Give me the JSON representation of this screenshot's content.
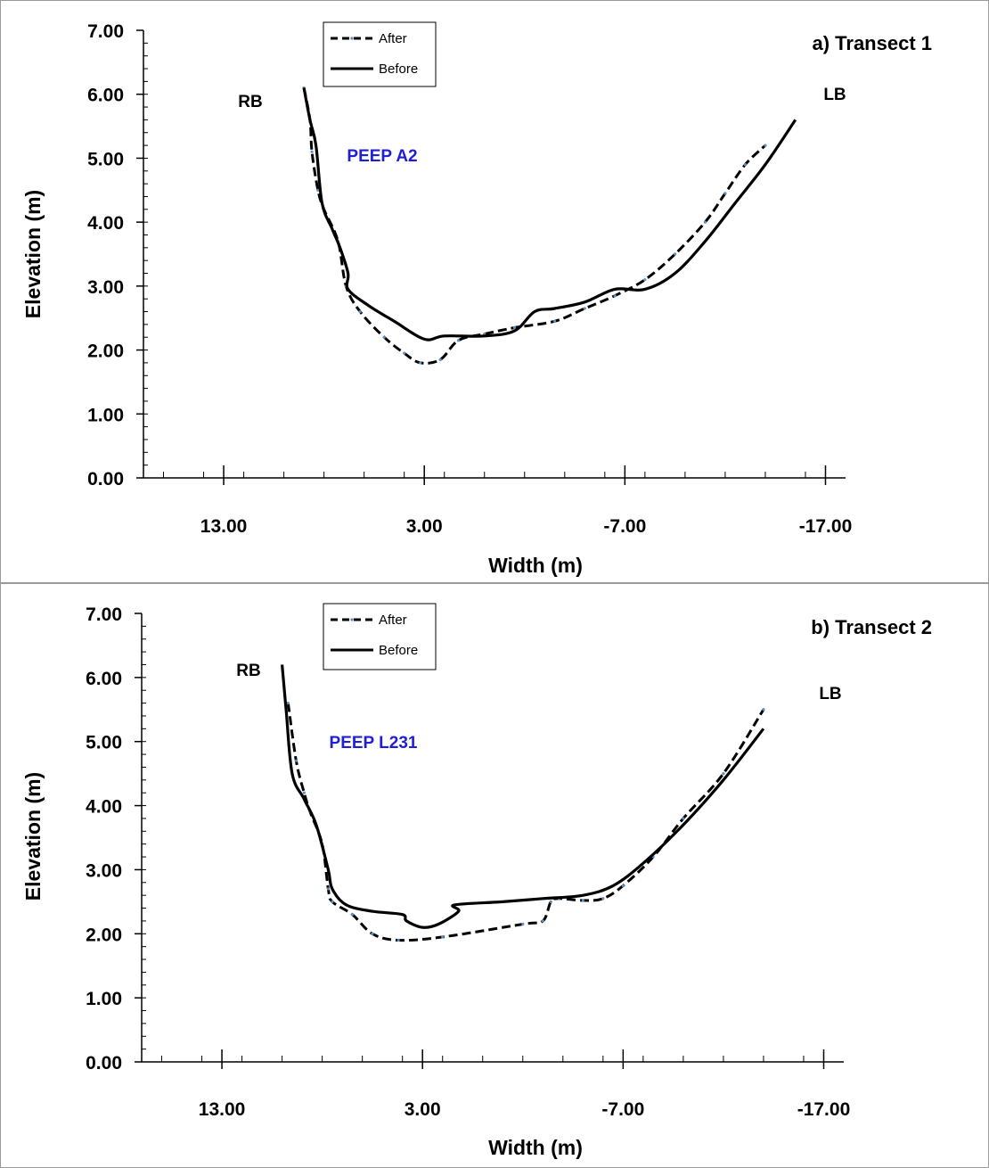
{
  "chart_data": [
    {
      "type": "line",
      "title": "a) Transect 1",
      "xlabel": "Width (m)",
      "ylabel": "Elevation (m)",
      "xlim": [
        17,
        -18
      ],
      "ylim": [
        0,
        7
      ],
      "x_axis_reversed": true,
      "x_ticks": [
        "13.00",
        "3.00",
        "-7.00",
        "-17.00"
      ],
      "y_ticks": [
        "0.00",
        "1.00",
        "2.00",
        "3.00",
        "4.00",
        "5.00",
        "6.00",
        "7.00"
      ],
      "grid": false,
      "legend_position": "top-center",
      "annotations": {
        "right_bank": "RB",
        "left_bank": "LB",
        "site": "PEEP A2"
      },
      "colors": {
        "site_label": "#1f1fd6",
        "lines": "#000000",
        "markers": "#5b8fc7"
      },
      "series": [
        {
          "name": "After",
          "style": "dashed",
          "points": [
            [
              9,
              6.1
            ],
            [
              8.7,
              5.6
            ],
            [
              8.6,
              5.1
            ],
            [
              8.3,
              4.5
            ],
            [
              8.0,
              4.2
            ],
            [
              7.3,
              3.7
            ],
            [
              6.9,
              3.0
            ],
            [
              6.2,
              2.6
            ],
            [
              5.0,
              2.2
            ],
            [
              4.0,
              1.95
            ],
            [
              3.2,
              1.8
            ],
            [
              2.2,
              1.85
            ],
            [
              1.3,
              2.15
            ],
            [
              0,
              2.25
            ],
            [
              -1.5,
              2.35
            ],
            [
              -3.5,
              2.45
            ],
            [
              -5,
              2.65
            ],
            [
              -6.5,
              2.85
            ],
            [
              -8,
              3.1
            ],
            [
              -9.5,
              3.5
            ],
            [
              -11,
              4.0
            ],
            [
              -12,
              4.45
            ],
            [
              -13,
              4.9
            ],
            [
              -14,
              5.2
            ]
          ]
        },
        {
          "name": "Before",
          "style": "solid",
          "points": [
            [
              9,
              6.1
            ],
            [
              8.7,
              5.6
            ],
            [
              8.4,
              5.2
            ],
            [
              8.1,
              4.3
            ],
            [
              7.6,
              3.9
            ],
            [
              7.2,
              3.6
            ],
            [
              6.8,
              3.2
            ],
            [
              6.8,
              2.95
            ],
            [
              5.8,
              2.7
            ],
            [
              4.5,
              2.45
            ],
            [
              3,
              2.17
            ],
            [
              2.0,
              2.22
            ],
            [
              0,
              2.22
            ],
            [
              -1.5,
              2.3
            ],
            [
              -2.5,
              2.6
            ],
            [
              -3.5,
              2.65
            ],
            [
              -5,
              2.75
            ],
            [
              -6.5,
              2.95
            ],
            [
              -8,
              2.95
            ],
            [
              -9.5,
              3.2
            ],
            [
              -11,
              3.7
            ],
            [
              -12.5,
              4.3
            ],
            [
              -14,
              4.9
            ],
            [
              -15.5,
              5.6
            ]
          ]
        }
      ]
    },
    {
      "type": "line",
      "title": "b) Transect 2",
      "xlabel": "Width (m)",
      "ylabel": "Elevation (m)",
      "xlim": [
        17,
        -18
      ],
      "ylim": [
        0,
        7
      ],
      "x_axis_reversed": true,
      "x_ticks": [
        "13.00",
        "3.00",
        "-7.00",
        "-17.00"
      ],
      "y_ticks": [
        "0.00",
        "1.00",
        "2.00",
        "3.00",
        "4.00",
        "5.00",
        "6.00",
        "7.00"
      ],
      "grid": false,
      "legend_position": "top-center",
      "annotations": {
        "right_bank": "RB",
        "left_bank": "LB",
        "site": "PEEP L231"
      },
      "colors": {
        "site_label": "#1f1fd6",
        "lines": "#000000",
        "markers": "#5b8fc7"
      },
      "series": [
        {
          "name": "After",
          "style": "dashed",
          "points": [
            [
              9.7,
              5.6
            ],
            [
              9.3,
              4.7
            ],
            [
              8.9,
              4.2
            ],
            [
              8.6,
              3.9
            ],
            [
              8.0,
              3.4
            ],
            [
              7.7,
              2.7
            ],
            [
              7.5,
              2.5
            ],
            [
              6.5,
              2.3
            ],
            [
              5.5,
              2.0
            ],
            [
              4.2,
              1.9
            ],
            [
              2,
              1.95
            ],
            [
              -2,
              2.15
            ],
            [
              -3,
              2.2
            ],
            [
              -3.4,
              2.5
            ],
            [
              -3.8,
              2.55
            ],
            [
              -5,
              2.52
            ],
            [
              -6,
              2.55
            ],
            [
              -7,
              2.75
            ],
            [
              -8.5,
              3.2
            ],
            [
              -10,
              3.8
            ],
            [
              -12,
              4.5
            ],
            [
              -14,
              5.5
            ]
          ]
        },
        {
          "name": "Before",
          "style": "solid",
          "points": [
            [
              10,
              6.2
            ],
            [
              9.8,
              5.5
            ],
            [
              9.5,
              4.5
            ],
            [
              8.9,
              4.1
            ],
            [
              8.3,
              3.7
            ],
            [
              7.7,
              3.0
            ],
            [
              7.5,
              2.7
            ],
            [
              6.8,
              2.45
            ],
            [
              5.5,
              2.35
            ],
            [
              4.0,
              2.3
            ],
            [
              3.8,
              2.2
            ],
            [
              3,
              2.1
            ],
            [
              2.2,
              2.15
            ],
            [
              1.2,
              2.35
            ],
            [
              1.4,
              2.45
            ],
            [
              -1,
              2.5
            ],
            [
              -3,
              2.55
            ],
            [
              -5,
              2.6
            ],
            [
              -6.5,
              2.75
            ],
            [
              -8,
              3.1
            ],
            [
              -10,
              3.7
            ],
            [
              -12,
              4.4
            ],
            [
              -14,
              5.2
            ]
          ]
        }
      ]
    }
  ]
}
